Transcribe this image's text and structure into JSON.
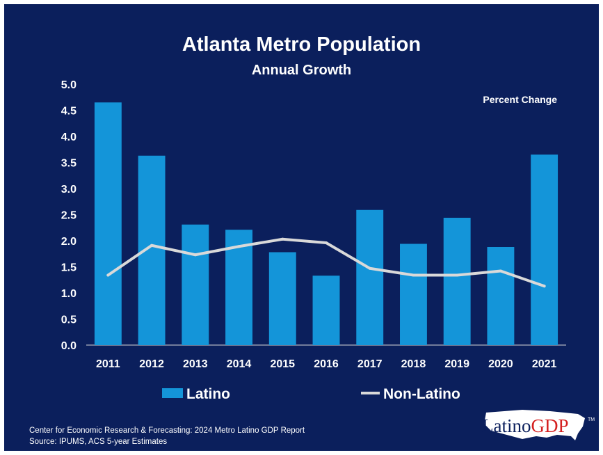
{
  "title": "Atlanta Metro Population",
  "subtitle": "Annual Growth",
  "colors": {
    "background": "#0b1f5c",
    "bar": "#1495d9",
    "line": "#d9d9d9",
    "text": "#ffffff"
  },
  "chart_data": {
    "type": "bar",
    "title": "Atlanta Metro Population",
    "subtitle": "Annual Growth",
    "unit_note": "Percent Change",
    "categories": [
      "2011",
      "2012",
      "2013",
      "2014",
      "2015",
      "2016",
      "2017",
      "2018",
      "2019",
      "2020",
      "2021"
    ],
    "series": [
      {
        "name": "Latino",
        "type": "bar",
        "color": "#1495d9",
        "values": [
          4.65,
          3.63,
          2.31,
          2.21,
          1.78,
          1.33,
          2.59,
          1.94,
          2.44,
          1.88,
          3.65
        ]
      },
      {
        "name": "Non-Latino",
        "type": "line",
        "color": "#d9d9d9",
        "values": [
          1.34,
          1.91,
          1.73,
          1.89,
          2.03,
          1.96,
          1.47,
          1.34,
          1.34,
          1.42,
          1.13
        ]
      }
    ],
    "ylim": [
      0,
      5
    ],
    "yticks": [
      "0.0",
      "0.5",
      "1.0",
      "1.5",
      "2.0",
      "2.5",
      "3.0",
      "3.5",
      "4.0",
      "4.5",
      "5.0"
    ],
    "grid": false,
    "legend_position": "bottom"
  },
  "footer": {
    "line1": "Center for Economic Research & Forecasting: 2024 Metro Latino GDP Report",
    "line2": "Source: IPUMS, ACS 5-year Estimates"
  },
  "logo": {
    "text": "LatinoGDP",
    "part1": "Latino",
    "part2": "GDP",
    "tm": "TM"
  }
}
